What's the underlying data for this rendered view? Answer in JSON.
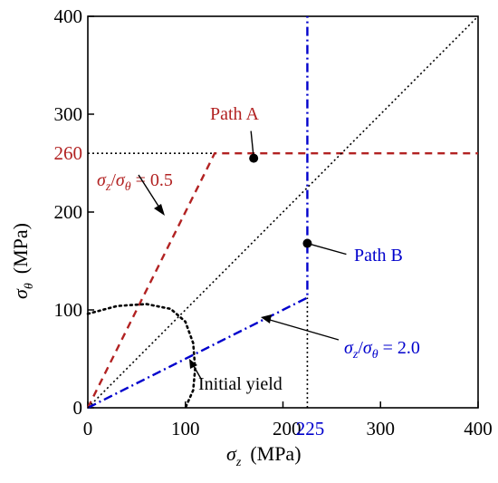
{
  "chart_data": {
    "type": "line",
    "xlabel_symbol": "σ",
    "xlabel_sub": "z",
    "xlabel_unit": "(MPa)",
    "ylabel_symbol": "σ",
    "ylabel_sub": "θ",
    "ylabel_unit": "(MPa)",
    "xlim": [
      0,
      400
    ],
    "ylim": [
      0,
      400
    ],
    "x_ticks": [
      "0",
      "100",
      "200",
      "300",
      "400"
    ],
    "x_tick_values": [
      0,
      100,
      200,
      300,
      400
    ],
    "y_ticks": [
      "0",
      "100",
      "200",
      "300",
      "400"
    ],
    "y_tick_values": [
      0,
      100,
      200,
      300,
      400
    ],
    "extra_x_tick": {
      "label": "225",
      "value": 225,
      "color": "#0000cc"
    },
    "extra_y_tick": {
      "label": "260",
      "value": 260,
      "color": "#b22222"
    },
    "series": [
      {
        "name": "Path A",
        "color": "#b22222",
        "dash": "8,6",
        "x": [
          0,
          130,
          400
        ],
        "y": [
          0,
          260,
          260
        ]
      },
      {
        "name": "Path B",
        "color": "#0000cc",
        "dash": "10,4,2,4",
        "x": [
          0,
          225,
          225,
          225
        ],
        "y": [
          0,
          112.5,
          260,
          400
        ]
      },
      {
        "name": "",
        "color": "#000000",
        "dash": "2,3",
        "x": [
          0,
          400
        ],
        "y": [
          0,
          400
        ]
      },
      {
        "name": "",
        "color": "#000000",
        "dash": "2,3",
        "x": [
          0,
          130
        ],
        "y": [
          260,
          260
        ]
      },
      {
        "name": "",
        "color": "#000000",
        "dash": "2,3",
        "x": [
          225,
          225
        ],
        "y": [
          0,
          112.5
        ]
      }
    ],
    "yield_curve": {
      "color": "#000000",
      "dash": "2,4",
      "x": [
        0,
        30,
        60,
        85,
        100,
        108,
        110,
        108,
        100
      ],
      "y": [
        96,
        104,
        106,
        101,
        88,
        66,
        40,
        18,
        0
      ]
    },
    "markers": [
      {
        "x": 170,
        "y": 255,
        "label": "Path A",
        "color": "#b22222"
      },
      {
        "x": 225,
        "y": 168,
        "label": "Path B",
        "color": "#0000cc"
      }
    ],
    "annotations": {
      "ratio_a": {
        "sym1": "σ",
        "sub1": "z",
        "sym2": "σ",
        "sub2": "θ",
        "value": " = 0.5",
        "color": "#b22222"
      },
      "ratio_b": {
        "sym1": "σ",
        "sub1": "z",
        "sym2": "σ",
        "sub2": "θ",
        "value": " = 2.0",
        "color": "#0000cc"
      },
      "initial_yield": {
        "text": "Initial yield",
        "color": "#000000"
      }
    }
  }
}
